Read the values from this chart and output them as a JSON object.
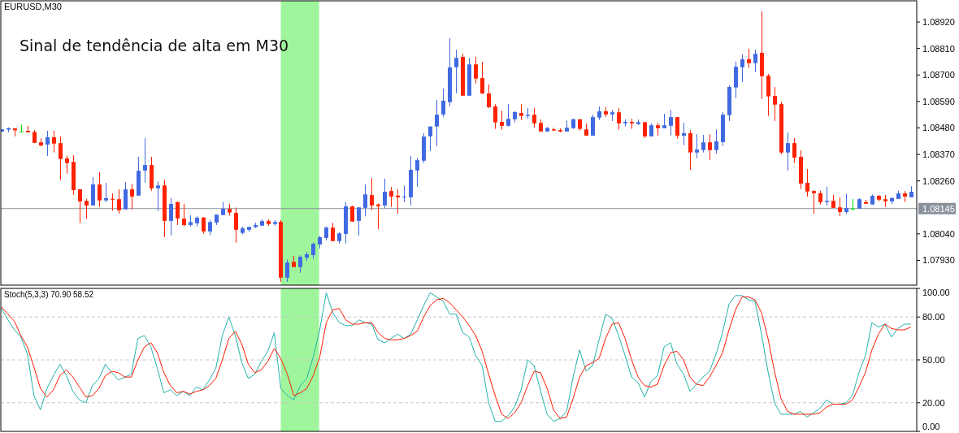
{
  "chart_data": [
    {
      "type": "candlestick",
      "title": "EURUSD,M30",
      "annotations": [
        "Sinal de tendência de alta em M30"
      ],
      "categories": [
        null,
        null,
        null,
        null,
        null,
        null,
        null,
        null,
        null,
        null,
        null,
        null,
        null,
        null,
        null,
        null,
        null,
        null,
        null,
        null,
        null,
        null,
        null,
        null,
        null,
        null,
        null,
        null,
        null,
        null,
        null,
        null,
        null,
        null,
        null,
        null,
        null,
        null,
        null,
        null,
        null,
        null,
        null,
        null,
        null,
        null,
        null,
        null,
        null,
        null,
        null,
        null,
        null,
        null,
        null,
        null,
        null,
        null,
        null,
        null,
        null,
        null,
        null,
        null,
        null,
        null,
        null,
        null,
        null,
        null,
        null,
        null,
        null,
        null,
        null,
        null,
        null,
        null,
        null,
        null,
        null,
        null,
        null,
        null,
        null,
        null,
        null,
        null,
        null,
        null,
        null,
        null,
        null,
        null,
        null,
        null,
        null,
        null,
        null,
        null,
        null,
        null,
        null,
        null,
        null,
        null,
        null,
        null,
        null,
        null,
        null,
        null,
        null,
        null,
        null,
        null,
        null,
        null,
        null,
        null,
        null,
        null,
        null,
        null,
        null,
        null,
        null,
        null,
        null,
        null,
        null,
        null,
        null,
        null,
        null,
        null,
        null,
        null,
        null,
        null,
        null
      ],
      "ohlc": [
        [
          1.08465,
          1.08476,
          1.08464,
          1.08474
        ],
        [
          1.08473,
          1.08482,
          1.08462,
          1.08479
        ],
        [
          1.08478,
          1.08478,
          1.08445,
          1.0847
        ],
        [
          1.08465,
          1.08494,
          1.08462,
          1.08465
        ],
        [
          1.08468,
          1.08489,
          1.08462,
          1.08462
        ],
        [
          1.08463,
          1.08471,
          1.08418,
          1.08418
        ],
        [
          1.0842,
          1.08437,
          1.08404,
          1.08407
        ],
        [
          1.08411,
          1.08468,
          1.08364,
          1.08441
        ],
        [
          1.08441,
          1.08468,
          1.08378,
          1.08415
        ],
        [
          1.08417,
          1.08445,
          1.08263,
          1.08351
        ],
        [
          1.08353,
          1.08365,
          1.0829,
          1.08334
        ],
        [
          1.08339,
          1.08366,
          1.08202,
          1.08222
        ],
        [
          1.08225,
          1.08225,
          1.08084,
          1.08175
        ],
        [
          1.08177,
          1.08186,
          1.08102,
          1.08158
        ],
        [
          1.08158,
          1.08275,
          1.08158,
          1.08245
        ],
        [
          1.08245,
          1.08296,
          1.08152,
          1.08179
        ],
        [
          1.08179,
          1.08252,
          1.08172,
          1.08188
        ],
        [
          1.08186,
          1.08208,
          1.08136,
          1.08182
        ],
        [
          1.08184,
          1.08225,
          1.08124,
          1.08138
        ],
        [
          1.08142,
          1.08255,
          1.08142,
          1.08225
        ],
        [
          1.08225,
          1.08248,
          1.08142,
          1.08195
        ],
        [
          1.08199,
          1.0836,
          1.08199,
          1.08302
        ],
        [
          1.08303,
          1.08437,
          1.08253,
          1.08326
        ],
        [
          1.08326,
          1.0836,
          1.08219,
          1.08229
        ],
        [
          1.08229,
          1.08258,
          1.08135,
          1.08241
        ],
        [
          1.08241,
          1.08265,
          1.08027,
          1.08094
        ],
        [
          1.08094,
          1.08188,
          1.08034,
          1.08164
        ],
        [
          1.08172,
          1.08174,
          1.08077,
          1.08104
        ],
        [
          1.08103,
          1.08165,
          1.08071,
          1.08077
        ],
        [
          1.08077,
          1.08117,
          1.08071,
          1.08089
        ],
        [
          1.08084,
          1.08114,
          1.08071,
          1.08107
        ],
        [
          1.08108,
          1.0811,
          1.08041,
          1.0805
        ],
        [
          1.0805,
          1.08098,
          1.08034,
          1.08089
        ],
        [
          1.08087,
          1.0812,
          1.08077,
          1.0812
        ],
        [
          1.08118,
          1.08172,
          1.08118,
          1.08144
        ],
        [
          1.08144,
          1.08165,
          1.08116,
          1.08129
        ],
        [
          1.08127,
          1.08149,
          1.08003,
          1.08057
        ],
        [
          1.08044,
          1.08071,
          1.08038,
          1.08063
        ],
        [
          1.08057,
          1.08069,
          1.08048,
          1.08069
        ],
        [
          1.08068,
          1.08086,
          1.08064,
          1.08077
        ],
        [
          1.08074,
          1.081,
          1.08074,
          1.08093
        ],
        [
          1.08093,
          1.081,
          1.08074,
          1.08081
        ],
        [
          1.08081,
          1.08098,
          1.08074,
          1.08089
        ],
        [
          1.0809,
          1.08098,
          1.07841,
          1.07858
        ],
        [
          1.07858,
          1.07934,
          1.07841,
          1.07921
        ],
        [
          1.07924,
          1.07948,
          1.07902,
          1.07902
        ],
        [
          1.07902,
          1.07951,
          1.07878,
          1.07945
        ],
        [
          1.07941,
          1.07965,
          1.07928,
          1.07955
        ],
        [
          1.07952,
          1.08004,
          1.07936,
          1.07999
        ],
        [
          1.07996,
          1.08032,
          1.07979,
          1.08026
        ],
        [
          1.08023,
          1.08071,
          1.08013,
          1.08066
        ],
        [
          1.08066,
          1.08086,
          1.0801,
          1.0801
        ],
        [
          1.0801,
          1.08047,
          1.08,
          1.08042
        ],
        [
          1.0804,
          1.08171,
          1.08,
          1.08154
        ],
        [
          1.08154,
          1.08157,
          1.08091,
          1.08091
        ],
        [
          1.08094,
          1.0815,
          1.08033,
          1.0815
        ],
        [
          1.08148,
          1.08245,
          1.08114,
          1.08204
        ],
        [
          1.08201,
          1.08272,
          1.08138,
          1.08158
        ],
        [
          1.08162,
          1.08167,
          1.0806,
          1.08155
        ],
        [
          1.08158,
          1.08269,
          1.08145,
          1.08215
        ],
        [
          1.08218,
          1.08235,
          1.08152,
          1.08195
        ],
        [
          1.08199,
          1.08225,
          1.08124,
          1.08192
        ],
        [
          1.08192,
          1.08241,
          1.08172,
          1.08195
        ],
        [
          1.08192,
          1.08363,
          1.08158,
          1.08306
        ],
        [
          1.08303,
          1.08356,
          1.08236,
          1.08346
        ],
        [
          1.08344,
          1.08458,
          1.08334,
          1.08444
        ],
        [
          1.08445,
          1.08486,
          1.08384,
          1.08486
        ],
        [
          1.08486,
          1.08596,
          1.08405,
          1.08535
        ],
        [
          1.08536,
          1.08643,
          1.08526,
          1.08593
        ],
        [
          1.08587,
          1.08852,
          1.0857,
          1.08731
        ],
        [
          1.08732,
          1.08805,
          1.08624,
          1.08771
        ],
        [
          1.08775,
          1.08788,
          1.08614,
          1.08614
        ],
        [
          1.08614,
          1.08771,
          1.08614,
          1.08744
        ],
        [
          1.08744,
          1.08775,
          1.08665,
          1.08685
        ],
        [
          1.08687,
          1.08755,
          1.08621,
          1.08623
        ],
        [
          1.08623,
          1.0866,
          1.08563,
          1.08566
        ],
        [
          1.08569,
          1.08579,
          1.08476,
          1.08503
        ],
        [
          1.08505,
          1.08552,
          1.08472,
          1.08489
        ],
        [
          1.08489,
          1.08579,
          1.08486,
          1.08518
        ],
        [
          1.08516,
          1.0855,
          1.08503,
          1.08546
        ],
        [
          1.08542,
          1.08579,
          1.08513,
          1.0853
        ],
        [
          1.0853,
          1.08562,
          1.08519,
          1.08535
        ],
        [
          1.08535,
          1.08562,
          1.08482,
          1.08499
        ],
        [
          1.08501,
          1.08515,
          1.08465,
          1.08465
        ],
        [
          1.08465,
          1.08484,
          1.08465,
          1.0848
        ],
        [
          1.08474,
          1.08481,
          1.08469,
          1.08469
        ],
        [
          1.08471,
          1.08478,
          1.08462,
          1.08465
        ],
        [
          1.08465,
          1.08511,
          1.08465,
          1.08481
        ],
        [
          1.08479,
          1.08519,
          1.08476,
          1.08516
        ],
        [
          1.08516,
          1.08516,
          1.08469,
          1.08476
        ],
        [
          1.08474,
          1.08498,
          1.08448,
          1.08448
        ],
        [
          1.08448,
          1.08535,
          1.08448,
          1.08525
        ],
        [
          1.08523,
          1.08569,
          1.08513,
          1.08549
        ],
        [
          1.08549,
          1.08566,
          1.08526,
          1.08536
        ],
        [
          1.08536,
          1.08555,
          1.08509,
          1.08545
        ],
        [
          1.08545,
          1.08562,
          1.08472,
          1.08499
        ],
        [
          1.08499,
          1.08515,
          1.08486,
          1.08505
        ],
        [
          1.08505,
          1.08518,
          1.08476,
          1.08499
        ],
        [
          1.08496,
          1.08515,
          1.08492,
          1.08504
        ],
        [
          1.08504,
          1.08504,
          1.08438,
          1.08445
        ],
        [
          1.08445,
          1.08498,
          1.08445,
          1.08491
        ],
        [
          1.08491,
          1.08501,
          1.08448,
          1.08479
        ],
        [
          1.08479,
          1.08539,
          1.08479,
          1.08491
        ],
        [
          1.08489,
          1.08555,
          1.08448,
          1.08525
        ],
        [
          1.08525,
          1.08525,
          1.08435,
          1.08448
        ],
        [
          1.08448,
          1.08501,
          1.08408,
          1.08458
        ],
        [
          1.08458,
          1.08471,
          1.08306,
          1.08378
        ],
        [
          1.08378,
          1.08454,
          1.08354,
          1.0839
        ],
        [
          1.08388,
          1.08451,
          1.08378,
          1.0842
        ],
        [
          1.0842,
          1.08454,
          1.08347,
          1.08388
        ],
        [
          1.08388,
          1.08474,
          1.08374,
          1.08424
        ],
        [
          1.08421,
          1.08545,
          1.08405,
          1.08535
        ],
        [
          1.08533,
          1.08657,
          1.08509,
          1.0865
        ],
        [
          1.08648,
          1.08755,
          1.08604,
          1.08734
        ],
        [
          1.08732,
          1.08785,
          1.08671,
          1.08765
        ],
        [
          1.08765,
          1.08809,
          1.08729,
          1.08749
        ],
        [
          1.08749,
          1.08805,
          1.08712,
          1.08788
        ],
        [
          1.08792,
          1.08964,
          1.086,
          1.08695
        ],
        [
          1.08697,
          1.08704,
          1.0853,
          1.08611
        ],
        [
          1.08613,
          1.0865,
          1.08509,
          1.08577
        ],
        [
          1.08579,
          1.08589,
          1.08371,
          1.08378
        ],
        [
          1.08378,
          1.08461,
          1.08303,
          1.08417
        ],
        [
          1.08417,
          1.08437,
          1.08334,
          1.08357
        ],
        [
          1.0836,
          1.08387,
          1.08226,
          1.08249
        ],
        [
          1.08252,
          1.08309,
          1.08195,
          1.08216
        ],
        [
          1.08218,
          1.08221,
          1.08124,
          1.08209
        ],
        [
          1.08209,
          1.08219,
          1.08162,
          1.08172
        ],
        [
          1.08172,
          1.08236,
          1.08158,
          1.08177
        ],
        [
          1.08177,
          1.08202,
          1.08148,
          1.08148
        ],
        [
          1.0815,
          1.08192,
          1.08114,
          1.08131
        ],
        [
          1.08131,
          1.08206,
          1.08124,
          1.08147
        ],
        [
          1.08145,
          1.08185,
          1.08138,
          1.08145
        ],
        [
          1.08145,
          1.08188,
          1.08145,
          1.08184
        ],
        [
          1.08172,
          1.08181,
          1.08165,
          1.08165
        ],
        [
          1.08162,
          1.08204,
          1.08162,
          1.08198
        ],
        [
          1.08198,
          1.08202,
          1.08175,
          1.08182
        ],
        [
          1.08184,
          1.08202,
          1.08152,
          1.08175
        ],
        [
          1.08175,
          1.08192,
          1.08165,
          1.08189
        ],
        [
          1.08185,
          1.08219,
          1.08185,
          1.08208
        ],
        [
          1.08208,
          1.08218,
          1.08172,
          1.08195
        ],
        [
          1.08192,
          1.08238,
          1.08192,
          1.08215
        ]
      ],
      "colors": [
        "#4169e1",
        "#4169e1",
        "#ff2200",
        "#00e600",
        "#ff2200",
        "#ff2200",
        "#ff2200",
        "#4169e1",
        "#ff2200",
        "#ff2200",
        "#ff2200",
        "#ff2200",
        "#ff2200",
        "#ff2200",
        "#4169e1",
        "#ff2200",
        "#4169e1",
        "#ff2200",
        "#ff2200",
        "#4169e1",
        "#ff2200",
        "#4169e1",
        "#4169e1",
        "#ff2200",
        "#4169e1",
        "#ff2200",
        "#4169e1",
        "#ff2200",
        "#ff2200",
        "#4169e1",
        "#4169e1",
        "#ff2200",
        "#4169e1",
        "#4169e1",
        "#4169e1",
        "#ff2200",
        "#ff2200",
        "#4169e1",
        "#4169e1",
        "#4169e1",
        "#4169e1",
        "#ff2200",
        "#4169e1",
        "#ff2200",
        "#4169e1",
        "#ff2200",
        "#4169e1",
        "#4169e1",
        "#4169e1",
        "#4169e1",
        "#4169e1",
        "#ff2200",
        "#4169e1",
        "#4169e1",
        "#ff2200",
        "#4169e1",
        "#4169e1",
        "#ff2200",
        "#ff2200",
        "#4169e1",
        "#ff2200",
        "#ff2200",
        "#4169e1",
        "#4169e1",
        "#4169e1",
        "#4169e1",
        "#4169e1",
        "#4169e1",
        "#4169e1",
        "#4169e1",
        "#4169e1",
        "#ff2200",
        "#4169e1",
        "#ff2200",
        "#ff2200",
        "#ff2200",
        "#ff2200",
        "#ff2200",
        "#4169e1",
        "#4169e1",
        "#ff2200",
        "#4169e1",
        "#ff2200",
        "#ff2200",
        "#4169e1",
        "#ff2200",
        "#ff2200",
        "#4169e1",
        "#4169e1",
        "#ff2200",
        "#ff2200",
        "#4169e1",
        "#4169e1",
        "#ff2200",
        "#4169e1",
        "#ff2200",
        "#4169e1",
        "#ff2200",
        "#4169e1",
        "#ff2200",
        "#4169e1",
        "#ff2200",
        "#4169e1",
        "#4169e1",
        "#ff2200",
        "#4169e1",
        "#ff2200",
        "#4169e1",
        "#4169e1",
        "#ff2200",
        "#4169e1",
        "#4169e1",
        "#4169e1",
        "#4169e1",
        "#4169e1",
        "#ff2200",
        "#4169e1",
        "#ff2200",
        "#ff2200",
        "#ff2200",
        "#ff2200",
        "#4169e1",
        "#ff2200",
        "#ff2200",
        "#ff2200",
        "#ff2200",
        "#ff2200",
        "#4169e1",
        "#ff2200",
        "#ff2200",
        "#4169e1",
        "#00e600",
        "#4169e1",
        "#ff2200",
        "#4169e1",
        "#ff2200",
        "#ff2200",
        "#4169e1",
        "#4169e1",
        "#ff2200",
        "#4169e1"
      ],
      "ylim": [
        1.07827,
        1.09008
      ],
      "yticks": [
        {
          "value": 1.0892,
          "label": "1.08920"
        },
        {
          "value": 1.0881,
          "label": "1.08810"
        },
        {
          "value": 1.087,
          "label": "1.08700"
        },
        {
          "value": 1.0859,
          "label": "1.08590"
        },
        {
          "value": 1.0848,
          "label": "1.08480"
        },
        {
          "value": 1.0837,
          "label": "1.08370"
        },
        {
          "value": 1.0826,
          "label": "1.08260"
        },
        {
          "value": 1.0804,
          "label": "1.08040"
        },
        {
          "value": 1.0793,
          "label": "1.07930"
        }
      ],
      "ref_lines": [
        {
          "axis": "y",
          "value": 1.08145,
          "label": "1.08145",
          "color": "#8a929c"
        }
      ]
    },
    {
      "type": "line",
      "title": "Stoch(5,3,3) 70.90 58.52",
      "categories": [
        null,
        null,
        null,
        null,
        null,
        null,
        null,
        null,
        null,
        null,
        null,
        null,
        null,
        null,
        null,
        null,
        null,
        null,
        null,
        null,
        null,
        null,
        null,
        null,
        null,
        null,
        null,
        null,
        null,
        null,
        null,
        null,
        null,
        null,
        null,
        null,
        null,
        null,
        null,
        null,
        null,
        null,
        null,
        null,
        null,
        null,
        null,
        null,
        null,
        null,
        null,
        null,
        null,
        null,
        null,
        null,
        null,
        null,
        null,
        null,
        null,
        null,
        null,
        null,
        null,
        null,
        null,
        null,
        null,
        null,
        null,
        null,
        null,
        null,
        null,
        null,
        null,
        null,
        null,
        null,
        null,
        null,
        null,
        null,
        null,
        null,
        null,
        null,
        null,
        null,
        null,
        null,
        null,
        null,
        null,
        null,
        null,
        null,
        null,
        null,
        null,
        null,
        null,
        null,
        null,
        null,
        null,
        null,
        null,
        null,
        null,
        null,
        null,
        null,
        null,
        null,
        null,
        null,
        null,
        null,
        null,
        null,
        null,
        null,
        null,
        null,
        null,
        null,
        null,
        null,
        null,
        null,
        null,
        null,
        null,
        null,
        null,
        null,
        null,
        null,
        null
      ],
      "series": [
        {
          "color": "#20b2aa",
          "values": [
            86,
            78,
            71,
            66,
            54,
            25,
            15,
            30,
            39,
            47,
            39,
            28,
            22,
            20,
            32,
            37,
            47,
            41,
            36,
            38,
            40,
            65,
            67,
            59,
            44,
            27,
            29,
            25,
            28,
            25,
            31,
            29,
            36,
            44,
            67,
            80,
            67,
            48,
            37,
            40,
            49,
            56,
            69,
            30,
            25,
            22,
            32,
            37,
            52,
            71,
            97,
            83,
            76,
            74,
            74,
            78,
            76,
            75,
            64,
            62,
            65,
            68,
            65,
            68,
            78,
            88,
            97,
            94,
            91,
            82,
            82,
            69,
            66,
            53,
            46,
            20,
            7,
            7,
            11,
            17,
            29,
            50,
            46,
            28,
            12,
            7,
            9,
            14,
            38,
            57,
            42,
            46,
            64,
            82,
            79,
            67,
            53,
            38,
            34,
            24,
            35,
            39,
            59,
            62,
            47,
            40,
            28,
            33,
            38,
            42,
            54,
            69,
            89,
            95,
            95,
            92,
            91,
            68,
            42,
            20,
            12,
            12,
            12,
            14,
            10,
            13,
            16,
            22,
            19,
            19,
            20,
            25,
            41,
            53,
            76,
            73,
            75,
            66,
            72,
            75,
            75
          ]
        },
        {
          "color": "#ff1a00",
          "values": [
            87,
            82,
            77,
            67,
            59,
            45,
            30,
            24,
            29,
            39,
            43,
            38,
            31,
            24,
            25,
            30,
            39,
            42,
            41,
            38,
            38,
            50,
            59,
            62,
            55,
            41,
            32,
            27,
            28,
            26,
            28,
            29,
            32,
            37,
            50,
            65,
            70,
            61,
            47,
            41,
            43,
            49,
            58,
            51,
            40,
            25,
            27,
            30,
            39,
            52,
            76,
            85,
            86,
            78,
            75,
            75,
            76,
            76,
            69,
            65,
            64,
            64,
            65,
            67,
            70,
            80,
            88,
            92,
            93,
            90,
            85,
            80,
            74,
            67,
            56,
            40,
            25,
            12,
            9,
            13,
            20,
            32,
            42,
            41,
            30,
            15,
            9,
            10,
            23,
            38,
            46,
            48,
            51,
            65,
            75,
            76,
            65,
            50,
            38,
            32,
            31,
            33,
            46,
            55,
            56,
            50,
            38,
            33,
            32,
            38,
            46,
            55,
            71,
            85,
            94,
            94,
            92,
            83,
            65,
            42,
            23,
            14,
            12,
            12,
            12,
            12,
            13,
            17,
            19,
            19,
            19,
            22,
            31,
            41,
            57,
            68,
            75,
            72,
            71,
            71,
            73
          ]
        }
      ],
      "ylim": [
        0,
        100
      ],
      "yticks": [
        {
          "value": 100,
          "label": "100.00"
        },
        {
          "value": 80,
          "label": "80.00"
        },
        {
          "value": 50,
          "label": "50.00"
        },
        {
          "value": 20,
          "label": "20.00"
        },
        {
          "value": 0,
          "label": "0.00"
        }
      ],
      "ref_lines": [
        {
          "axis": "y",
          "value": 80,
          "color": "#c8c8c8",
          "line_style": "dashed"
        },
        {
          "axis": "y",
          "value": 50,
          "color": "#c8c8c8",
          "line_style": "dashed"
        },
        {
          "axis": "y",
          "value": 20,
          "color": "#c8c8c8",
          "line_style": "dashed"
        }
      ]
    }
  ]
}
